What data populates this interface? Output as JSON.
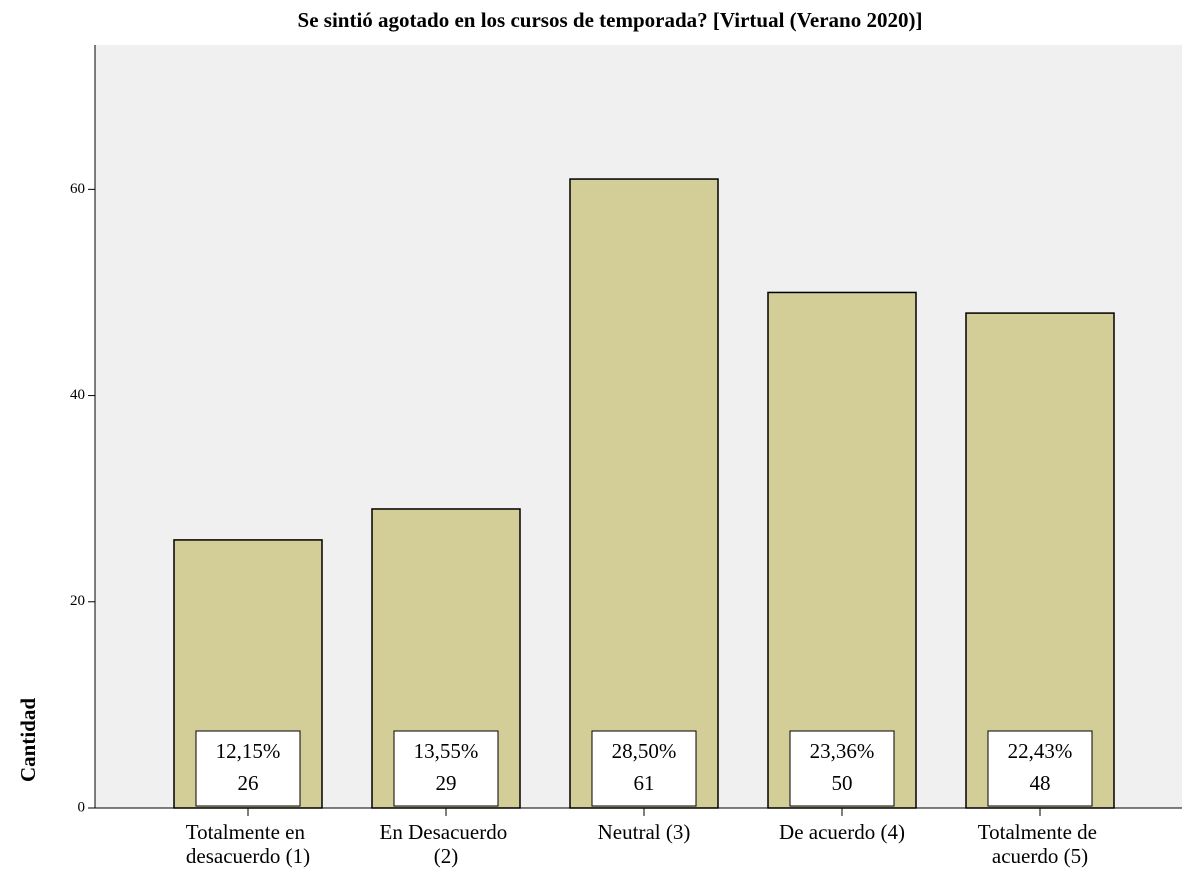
{
  "chart_data": {
    "type": "bar",
    "title": "Se sintió agotado en los cursos de temporada? [Virtual (Verano 2020)]",
    "y_label": "Cantidad",
    "categories": [
      "Totalmente en desacuerdo (1)",
      "En Desacuerdo (2)",
      "Neutral (3)",
      "De acuerdo (4)",
      "Totalmente de acuerdo (5)"
    ],
    "values": [
      26,
      29,
      61,
      50,
      48
    ],
    "percent_labels": [
      "12,15%",
      "13,55%",
      "28,50%",
      "23,36%",
      "22,43%"
    ],
    "color": "#d3ce97",
    "ylim": [
      0,
      74
    ],
    "yticks": [
      0,
      20,
      40,
      60
    ],
    "grid": false
  }
}
